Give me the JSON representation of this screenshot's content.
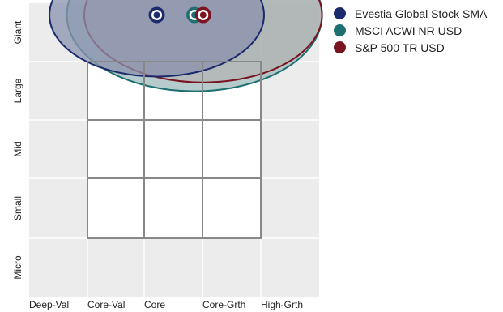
{
  "chart_data": {
    "type": "scatter",
    "x_categories": [
      "Deep-Val",
      "Core-Val",
      "Core",
      "Core-Grth",
      "High-Grth"
    ],
    "y_categories": [
      "Micro",
      "Small",
      "Mid",
      "Large",
      "Giant"
    ],
    "series": [
      {
        "name": "Evestia Global Stock SMA",
        "color": "#1a2a6c",
        "point": {
          "x": 2.2,
          "y": 4.8
        },
        "ellipse": {
          "rx": 1.85,
          "ry": 1.05
        }
      },
      {
        "name": "MSCI ACWI NR USD",
        "color": "#1e6f72",
        "point": {
          "x": 2.85,
          "y": 4.8
        },
        "ellipse": {
          "rx": 2.2,
          "ry": 1.3
        }
      },
      {
        "name": "S&P 500 TR USD",
        "color": "#7a1420",
        "point": {
          "x": 3.0,
          "y": 4.8
        },
        "ellipse": {
          "rx": 2.05,
          "ry": 1.15
        }
      }
    ]
  }
}
